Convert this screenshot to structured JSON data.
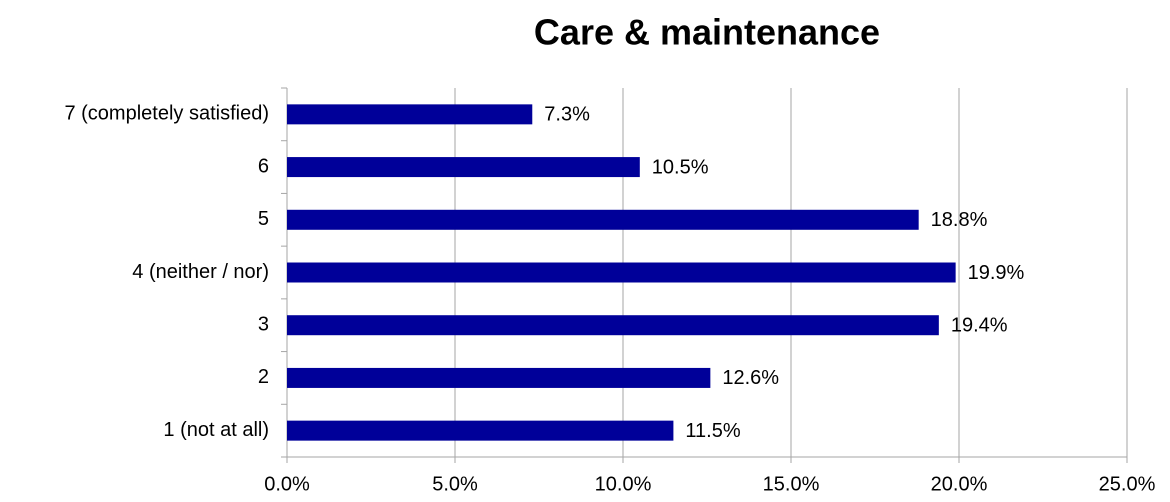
{
  "chart_data": {
    "type": "bar",
    "orientation": "horizontal",
    "title": "Care & maintenance",
    "categories": [
      "7 (completely satisfied)",
      "6",
      "5",
      "4 (neither / nor)",
      "3",
      "2",
      "1 (not at all)"
    ],
    "values": [
      7.3,
      10.5,
      18.8,
      19.9,
      19.4,
      12.6,
      11.5
    ],
    "value_labels": [
      "7.3%",
      "10.5%",
      "18.8%",
      "19.9%",
      "19.4%",
      "12.6%",
      "11.5%"
    ],
    "color": "#000099",
    "xlim": [
      0,
      25
    ],
    "xticks": [
      {
        "value": 0,
        "label": "0.0%"
      },
      {
        "value": 5,
        "label": "5.0%"
      },
      {
        "value": 10,
        "label": "10.0%"
      },
      {
        "value": 15,
        "label": "15.0%"
      },
      {
        "value": 20,
        "label": "20.0%"
      },
      {
        "value": 25,
        "label": "25.0%"
      }
    ],
    "grid": true
  }
}
